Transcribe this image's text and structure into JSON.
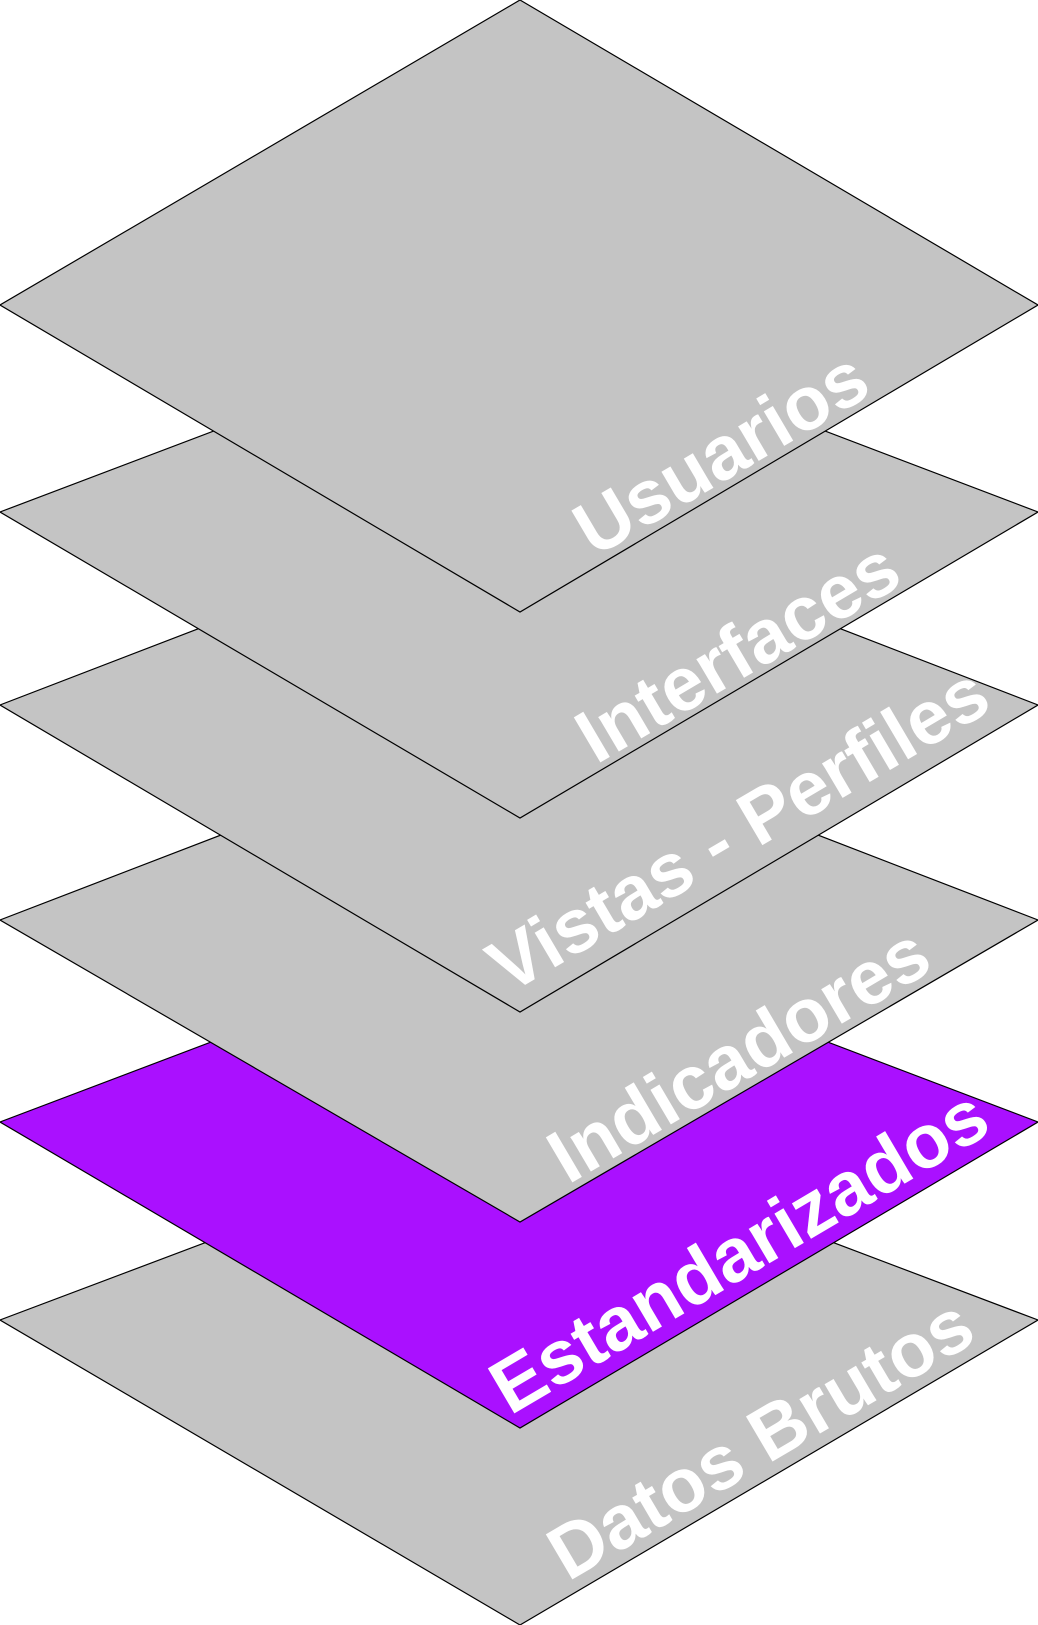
{
  "diagram": {
    "layers": [
      {
        "label": "Datos Brutos",
        "color": "#c4c4c4",
        "highlighted": false
      },
      {
        "label": "Estandarizados",
        "color": "#aa10ff",
        "highlighted": true
      },
      {
        "label": "Indicadores",
        "color": "#c4c4c4",
        "highlighted": false
      },
      {
        "label": "Vistas - Perfiles",
        "color": "#c4c4c4",
        "highlighted": false
      },
      {
        "label": "Interfaces",
        "color": "#c4c4c4",
        "highlighted": false
      },
      {
        "label": "Usuarios",
        "color": "#c4c4c4",
        "highlighted": false
      }
    ]
  }
}
